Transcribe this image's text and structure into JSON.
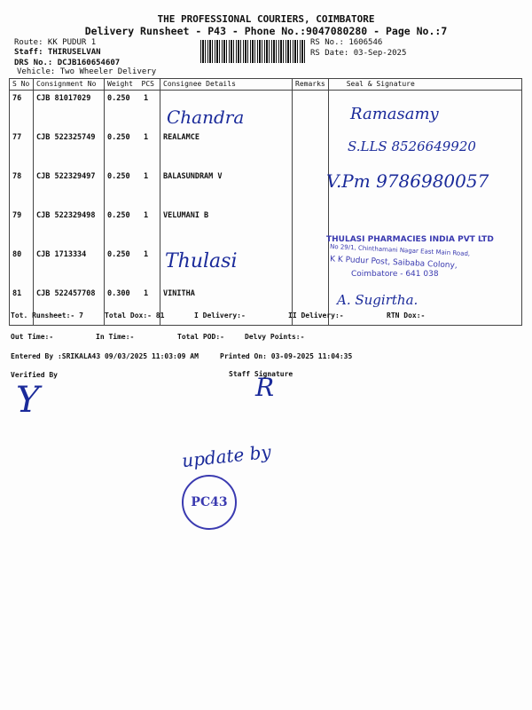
{
  "header": {
    "company": "THE PROFESSIONAL COURIERS, COIMBATORE",
    "subtitle": "Delivery Runsheet - P43 - Phone No.:9047080280 - Page No.:7",
    "route": "Route: KK PUDUR 1",
    "staff": "Staff: THIRUSELVAN",
    "drs": "DRS No.: DCJB160654607",
    "vehicle": "Vehicle: Two Wheeler Delivery",
    "rs_no": "RS No.: 1606546",
    "rs_date": "RS Date: 03-Sep-2025"
  },
  "table": {
    "columns": [
      "S No",
      "Consignment No",
      "Weight",
      "PCS",
      "Consignee Details",
      "Remarks",
      "Seal & Signature"
    ],
    "rows": [
      {
        "sno": "76",
        "cn": "CJB 81017029",
        "weight": "0.250",
        "pcs": "1",
        "consignee": ""
      },
      {
        "sno": "77",
        "cn": "CJB 522325749",
        "weight": "0.250",
        "pcs": "1",
        "consignee": "REALAMCE"
      },
      {
        "sno": "78",
        "cn": "CJB 522329497",
        "weight": "0.250",
        "pcs": "1",
        "consignee": "BALASUNDRAM V"
      },
      {
        "sno": "79",
        "cn": "CJB 522329498",
        "weight": "0.250",
        "pcs": "1",
        "consignee": "VELUMANI B"
      },
      {
        "sno": "80",
        "cn": "CJB 1713334",
        "weight": "0.250",
        "pcs": "1",
        "consignee": ""
      },
      {
        "sno": "81",
        "cn": "CJB 522457708",
        "weight": "0.300",
        "pcs": "1",
        "consignee": "VINITHA"
      }
    ]
  },
  "handwriting": {
    "r76_name": "Chandra",
    "r76_sig": "Ramasamy",
    "r77_sig": "S.LLS 8526649920",
    "r78_sig": "V.Pm 9786980057",
    "r80_name": "Thulasi",
    "r81_sig": "A. Sugirtha.",
    "verified": "Y",
    "staff": "R",
    "update": "update by",
    "stamp_circle": "PC43"
  },
  "stamp": {
    "line1": "THULASI PHARMACIES INDIA PVT LTD",
    "line2": "No 29/1, Chinthamani Nagar East Main Road,",
    "line3": "K K Pudur Post, Saibaba Colony,",
    "line4": "Coimbatore - 641 038"
  },
  "summary": {
    "tot_runsheet": "Tot. Runsheet:- 7",
    "total_dox": "Total Dox:-  81",
    "i_delivery": "I Delivery:-",
    "ii_delivery": "II Delivery:-",
    "rtn_dox": "RTN Dox:-",
    "out_time": "Out Time:-",
    "in_time": "In Time:-",
    "total_pod": "Total POD:-",
    "delvy_points": "Delvy Points:-",
    "entered_by": "Entered By :SRIKALA43 09/03/2025 11:03:09 AM",
    "printed_on": "Printed On: 03-09-2025 11:04:35",
    "verified_by": "Verified By",
    "staff_signature": "Staff Signature"
  }
}
